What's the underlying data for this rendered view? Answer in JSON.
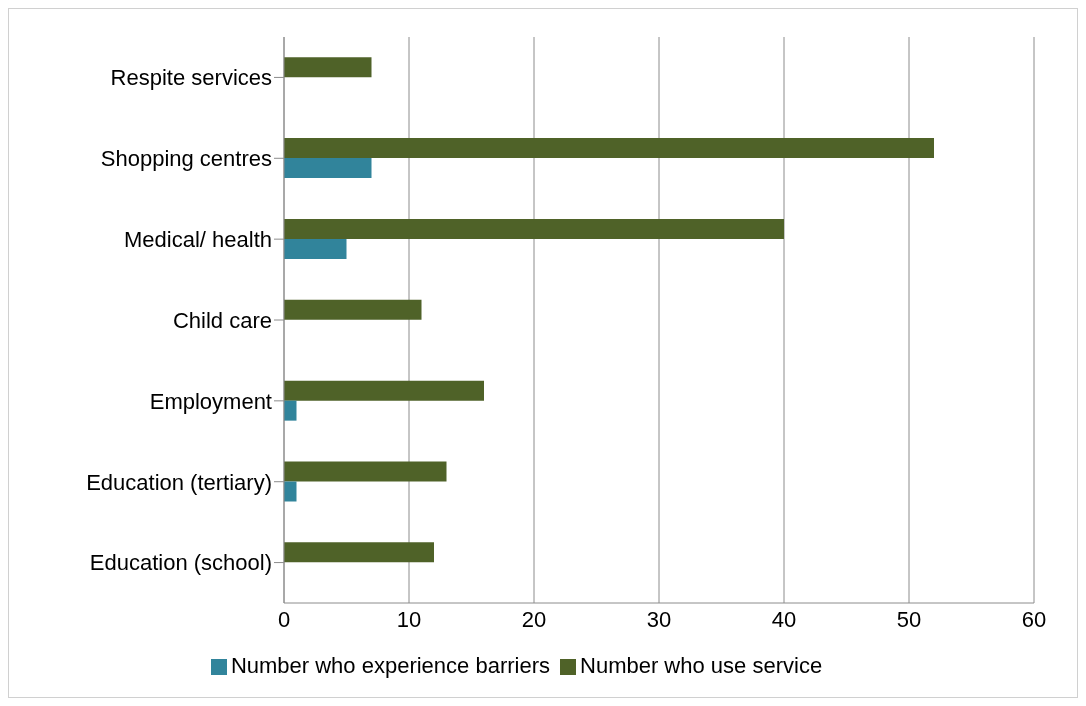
{
  "chart_data": {
    "type": "bar",
    "orientation": "horizontal",
    "categories": [
      "Respite services",
      "Shopping centres",
      "Medical/ health",
      "Child care",
      "Employment",
      "Education (tertiary)",
      "Education (school)"
    ],
    "series": [
      {
        "name": "Number who use service",
        "color": "#4f6228",
        "values": [
          7,
          52,
          40,
          11,
          16,
          13,
          12
        ]
      },
      {
        "name": "Number who experience barriers",
        "color": "#31849b",
        "values": [
          null,
          7,
          5,
          null,
          1,
          1,
          null
        ]
      }
    ],
    "xlim": [
      0,
      60
    ],
    "xticks": [
      0,
      10,
      20,
      30,
      40,
      50,
      60
    ],
    "grid": "x",
    "legend": "bottom"
  }
}
